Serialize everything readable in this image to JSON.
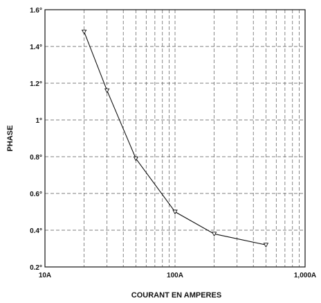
{
  "chart_data": {
    "type": "line",
    "xlabel": "COURANT EN AMPERES",
    "ylabel": "PHASE",
    "xscale": "log",
    "xlim": [
      10,
      1000
    ],
    "ylim": [
      0.2,
      1.6
    ],
    "grid": true,
    "x_tick_labels": [
      {
        "value": 10,
        "label": "10A"
      },
      {
        "value": 100,
        "label": "100A"
      },
      {
        "value": 1000,
        "label": "1,000A"
      }
    ],
    "y_tick_labels": [
      {
        "value": 0.2,
        "label": "0.2°"
      },
      {
        "value": 0.4,
        "label": "0.4°"
      },
      {
        "value": 0.6,
        "label": "0.6°"
      },
      {
        "value": 0.8,
        "label": "0.8°"
      },
      {
        "value": 1.0,
        "label": "1°"
      },
      {
        "value": 1.2,
        "label": "1.2°"
      },
      {
        "value": 1.4,
        "label": "1.4°"
      },
      {
        "value": 1.6,
        "label": "1.6°"
      }
    ],
    "series": [
      {
        "x": [
          20,
          30,
          50,
          100,
          200,
          500
        ],
        "y": [
          1.48,
          1.16,
          0.79,
          0.5,
          0.38,
          0.32
        ]
      }
    ]
  }
}
